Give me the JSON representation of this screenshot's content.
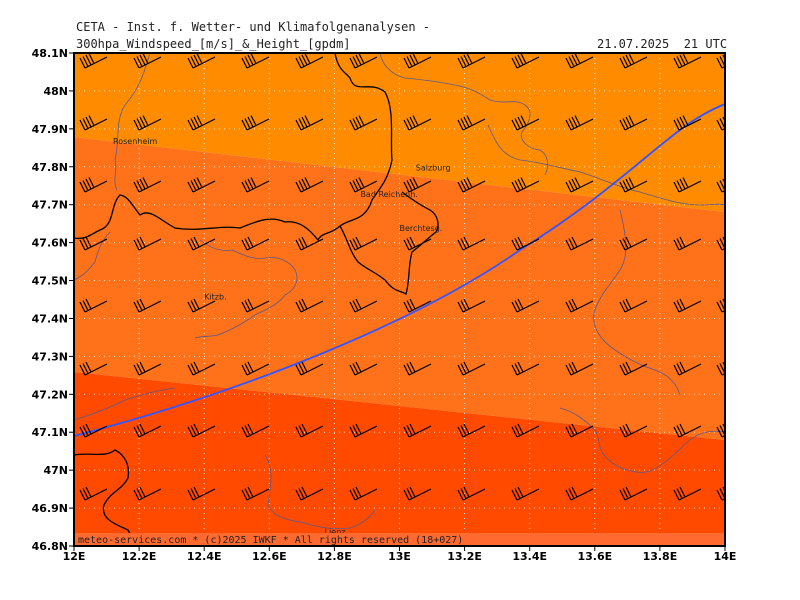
{
  "header": {
    "title": "CETA - Inst. f. Wetter- und Klimafolgenanalysen -",
    "subtitle": "300hpa_Windspeed_[m/s]_&_Height_[gpdm]",
    "timestamp": "21.07.2025  21 UTC"
  },
  "footer": {
    "credit": "meteo-services.com * (c)2025 IWKF * All rights reserved (18+027)"
  },
  "map_data": {
    "type": "map",
    "region": "Eastern Alps / Salzburg area",
    "lon_range": [
      12,
      14
    ],
    "lat_range": [
      46.8,
      48.1
    ],
    "x_ticks": [
      "12E",
      "12.2E",
      "12.4E",
      "12.6E",
      "12.8E",
      "13E",
      "13.2E",
      "13.4E",
      "13.6E",
      "13.8E",
      "14E"
    ],
    "y_ticks": [
      "48.1N",
      "48N",
      "47.9N",
      "47.8N",
      "47.7N",
      "47.6N",
      "47.5N",
      "47.4N",
      "47.3N",
      "47.2N",
      "47.1N",
      "47N",
      "46.9N",
      "46.8N"
    ],
    "grid": true,
    "windspeed_bands": [
      {
        "color": "#ff8c00"
      },
      {
        "color": "#ff7219"
      },
      {
        "color": "#ff4a00"
      }
    ],
    "height_contour_color": "#3355ff",
    "cities": [
      {
        "name": "Rosenheim",
        "lon": 12.12,
        "lat": 47.86
      },
      {
        "name": "Salzburg",
        "lon": 13.05,
        "lat": 47.79
      },
      {
        "name": "Bad Reichenh.",
        "lon": 12.88,
        "lat": 47.72
      },
      {
        "name": "Berchtesg.",
        "lon": 13.0,
        "lat": 47.63
      },
      {
        "name": "Kitzb.",
        "lon": 12.4,
        "lat": 47.45
      },
      {
        "name": "Lienz",
        "lon": 12.77,
        "lat": 46.83
      }
    ]
  }
}
